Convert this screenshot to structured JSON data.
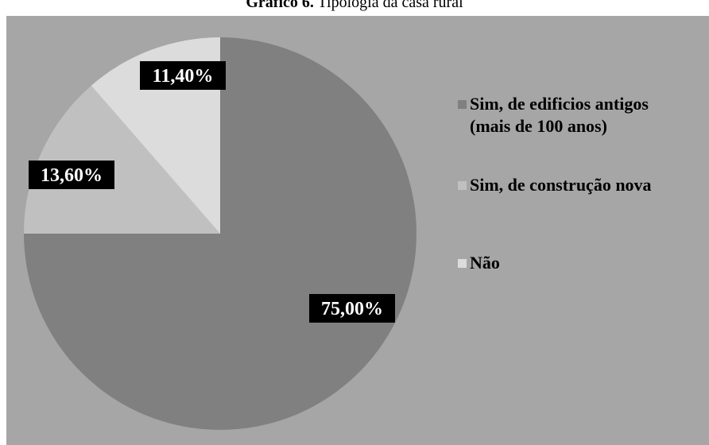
{
  "chart_data": {
    "type": "pie",
    "title_bold": "Gráfico 6.",
    "title_rest": " Tipologia da casa rural",
    "slices": [
      {
        "name_lines": [
          "Sim, de edificios antigos",
          "(mais de 100 anos)"
        ],
        "value": 75.0,
        "label": "75,00%",
        "color": "#808080"
      },
      {
        "name_lines": [
          "Sim, de construção nova"
        ],
        "value": 13.6,
        "label": "13,60%",
        "color": "#c0c0c0"
      },
      {
        "name_lines": [
          "Não"
        ],
        "value": 11.4,
        "label": "11,40%",
        "color": "#dcdcdc"
      }
    ],
    "start": "12 o'clock",
    "direction": "clockwise",
    "legend_position": "right",
    "background": "#a6a6a6",
    "label_background": "#000000",
    "label_color": "#ffffff"
  }
}
